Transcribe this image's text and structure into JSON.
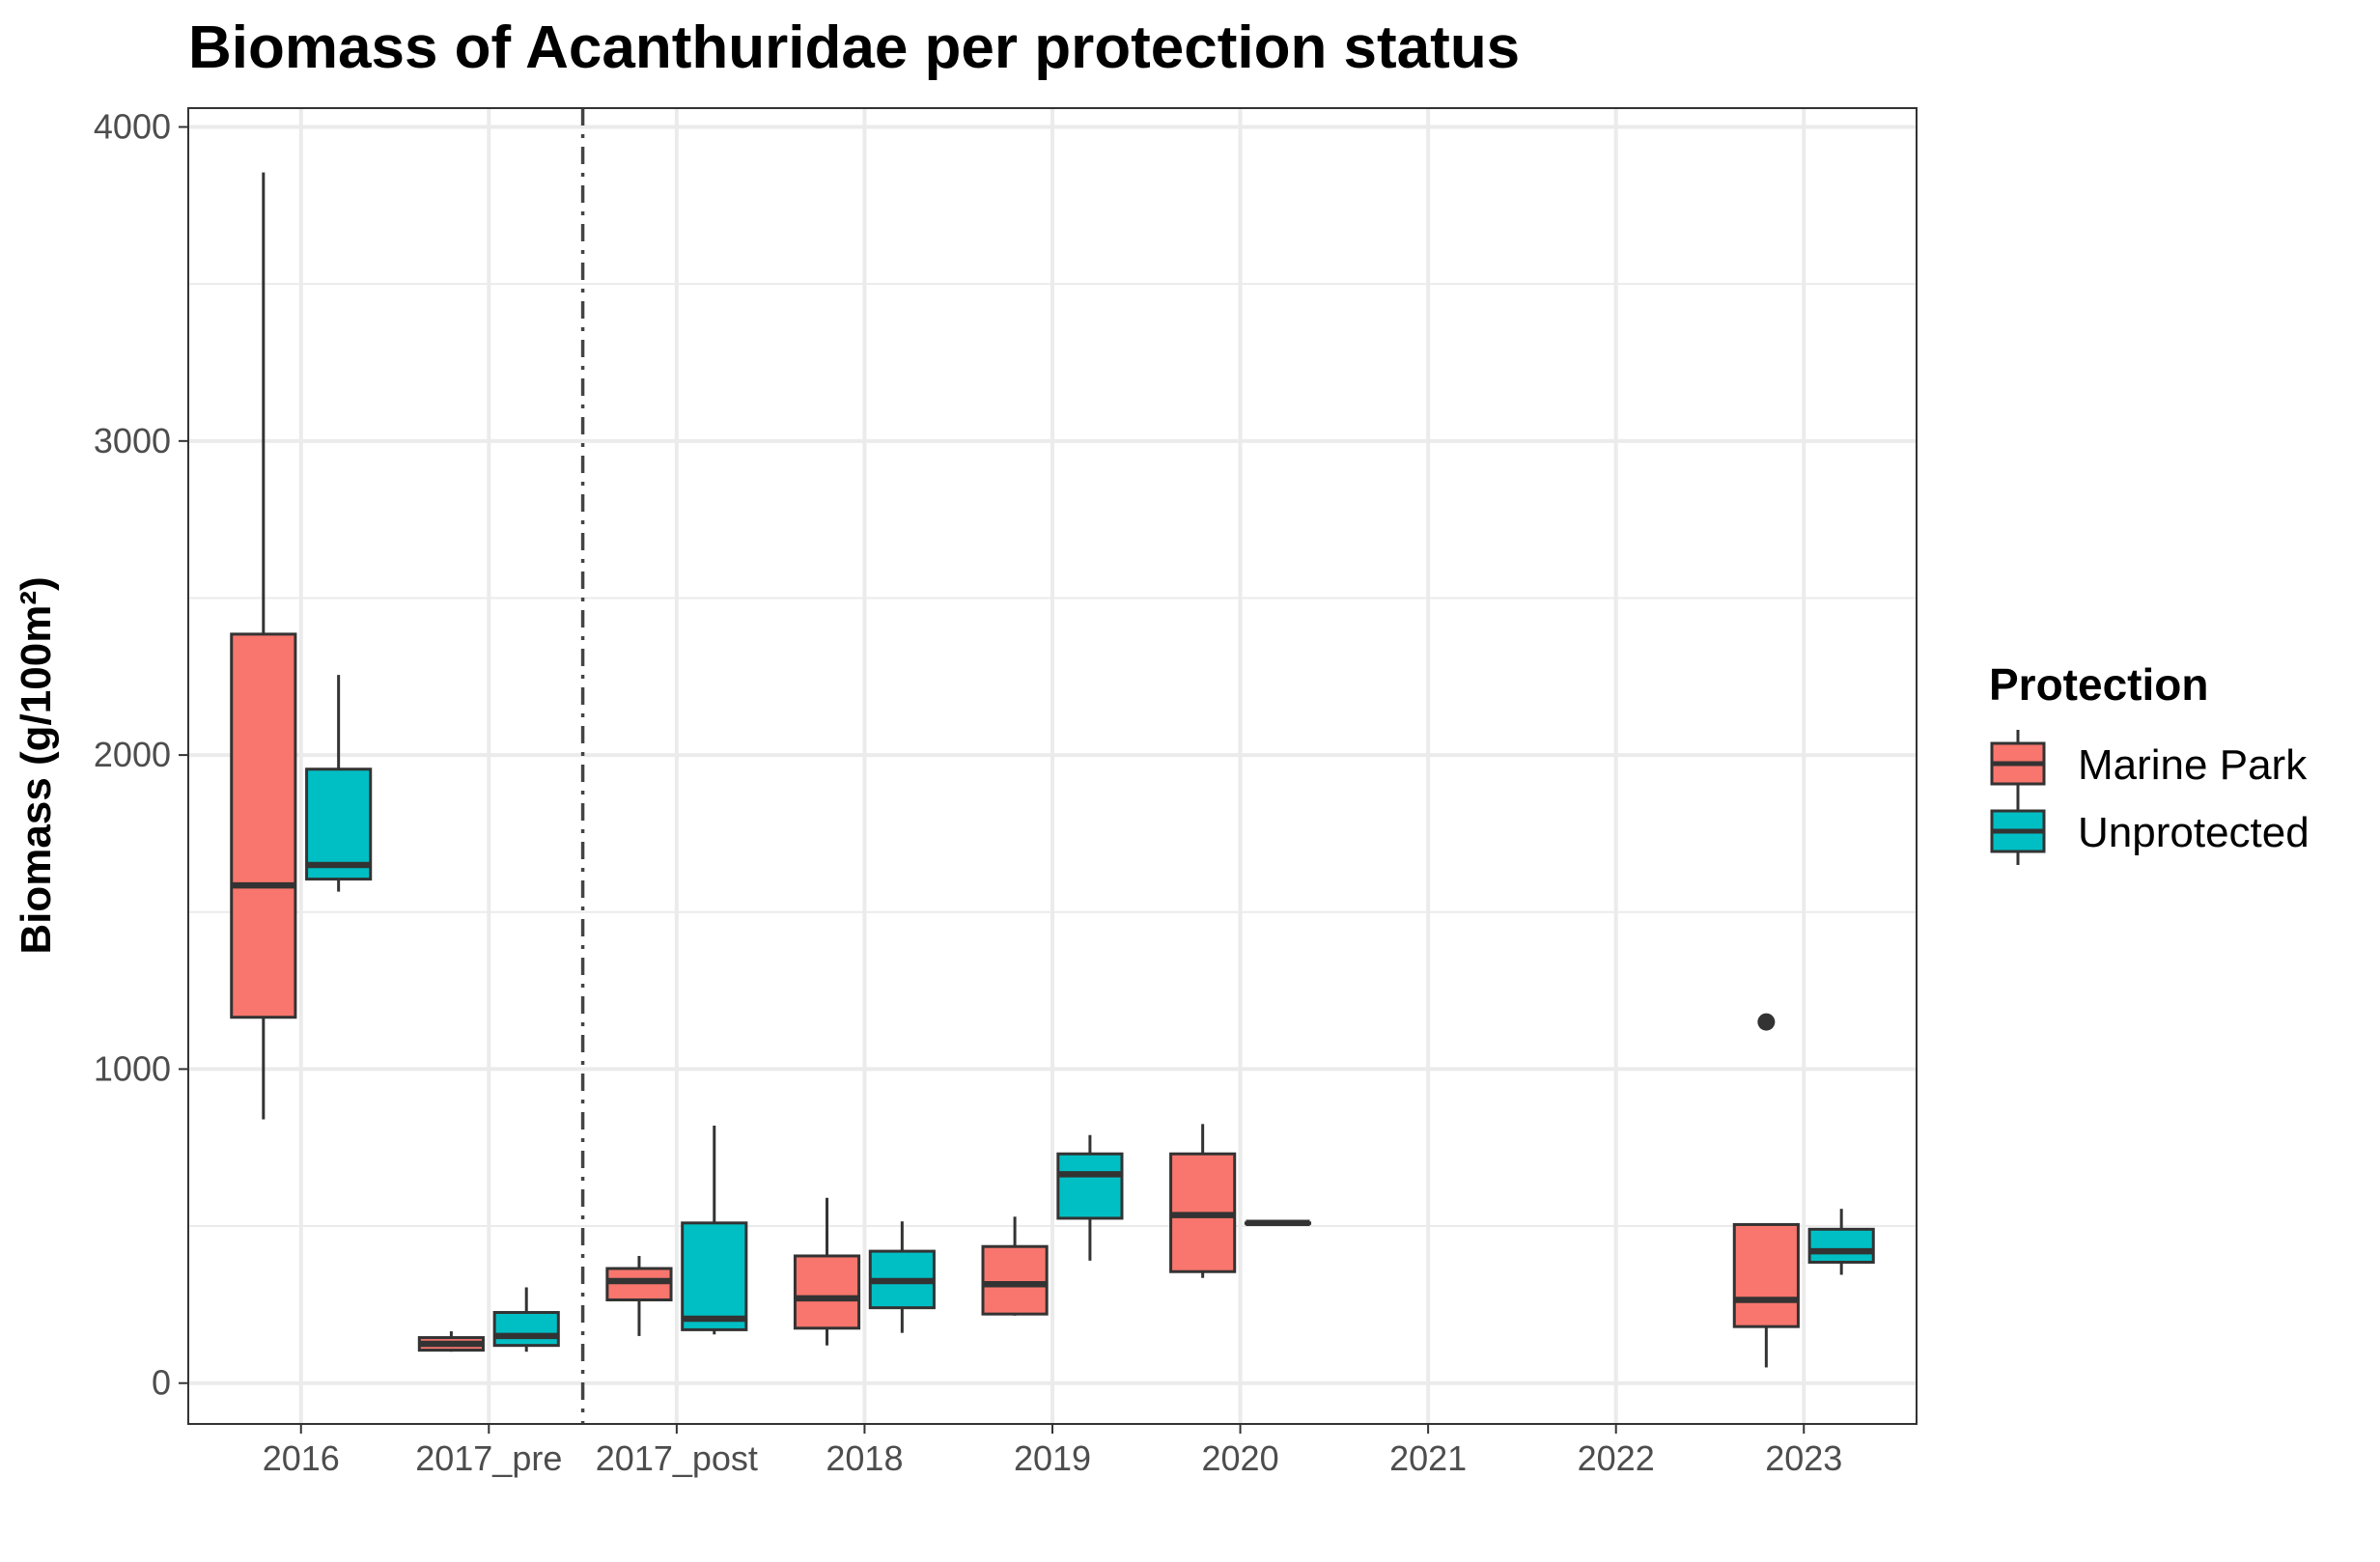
{
  "chart_data": {
    "type": "box",
    "title": "Biomass of Acanthuridae per protection status",
    "xlabel": "",
    "ylabel": "Biomass (g/100m²)",
    "ylim": [
      -130,
      4060
    ],
    "yticks": [
      0,
      1000,
      2000,
      3000,
      4000
    ],
    "grid": true,
    "categories": [
      "2016",
      "2017_pre",
      "2017_post",
      "2018",
      "2019",
      "2020",
      "2021",
      "2022",
      "2023"
    ],
    "reference_line": {
      "between": [
        "2017_pre",
        "2017_post"
      ],
      "style": "dashed"
    },
    "legend": {
      "title": "Protection",
      "placement": "right"
    },
    "series": [
      {
        "name": "Marine Park",
        "color": "#F8766D",
        "boxes": [
          {
            "category": "2016",
            "min": 840,
            "q1": 1165,
            "median": 1585,
            "q3": 2385,
            "max": 3855,
            "outliers": []
          },
          {
            "category": "2017_pre",
            "min": 100,
            "q1": 105,
            "median": 125,
            "q3": 145,
            "max": 165,
            "outliers": []
          },
          {
            "category": "2017_post",
            "min": 150,
            "q1": 265,
            "median": 325,
            "q3": 365,
            "max": 405,
            "outliers": []
          },
          {
            "category": "2018",
            "min": 120,
            "q1": 175,
            "median": 270,
            "q3": 405,
            "max": 590,
            "outliers": []
          },
          {
            "category": "2019",
            "min": 215,
            "q1": 220,
            "median": 315,
            "q3": 435,
            "max": 530,
            "outliers": []
          },
          {
            "category": "2020",
            "min": 335,
            "q1": 355,
            "median": 535,
            "q3": 730,
            "max": 825,
            "outliers": []
          },
          {
            "category": "2023",
            "min": 50,
            "q1": 180,
            "median": 265,
            "q3": 505,
            "max": 505,
            "outliers": [
              1150
            ]
          }
        ]
      },
      {
        "name": "Unprotected",
        "color": "#00BFC4",
        "boxes": [
          {
            "category": "2016",
            "min": 1565,
            "q1": 1605,
            "median": 1650,
            "q3": 1955,
            "max": 2255,
            "outliers": []
          },
          {
            "category": "2017_pre",
            "min": 100,
            "q1": 120,
            "median": 150,
            "q3": 225,
            "max": 305,
            "outliers": []
          },
          {
            "category": "2017_post",
            "min": 155,
            "q1": 170,
            "median": 205,
            "q3": 510,
            "max": 820,
            "outliers": []
          },
          {
            "category": "2018",
            "min": 160,
            "q1": 240,
            "median": 325,
            "q3": 420,
            "max": 515,
            "outliers": []
          },
          {
            "category": "2019",
            "min": 390,
            "q1": 525,
            "median": 665,
            "q3": 730,
            "max": 790,
            "outliers": []
          },
          {
            "category": "2020",
            "min": 510,
            "q1": 510,
            "median": 510,
            "q3": 510,
            "max": 510,
            "outliers": []
          },
          {
            "category": "2023",
            "min": 345,
            "q1": 385,
            "median": 420,
            "q3": 490,
            "max": 555,
            "outliers": []
          }
        ]
      }
    ]
  }
}
